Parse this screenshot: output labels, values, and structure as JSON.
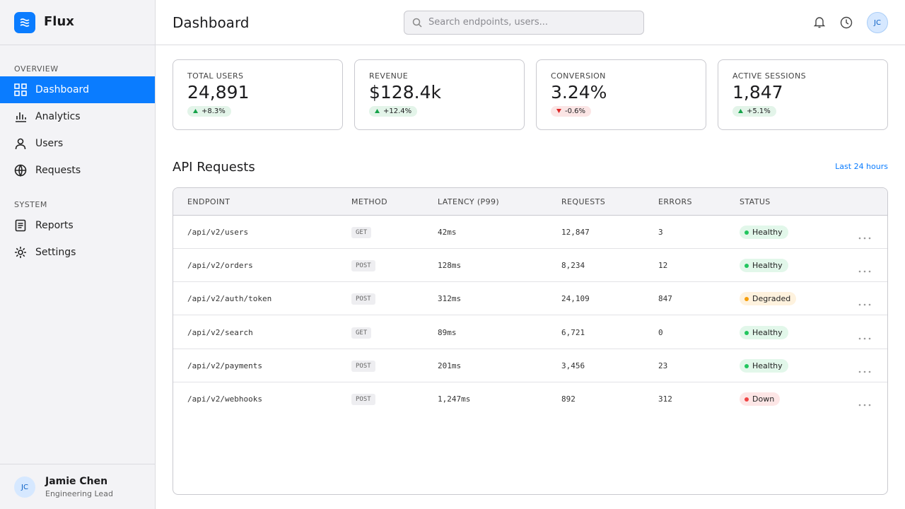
{
  "brand": "Flux",
  "sidebar": {
    "sections": [
      {
        "title": "OVERVIEW",
        "items": [
          "Dashboard",
          "Analytics",
          "Users",
          "Requests"
        ]
      },
      {
        "title": "SYSTEM",
        "items": [
          "Reports",
          "Settings"
        ]
      }
    ],
    "user": {
      "initials": "JC",
      "name": "Jamie Chen",
      "role": "Engineering Lead"
    }
  },
  "header": {
    "title": "Dashboard",
    "search_placeholder": "Search endpoints, users...",
    "avatar": "JC"
  },
  "stats": [
    {
      "label": "TOTAL USERS",
      "value": "24,891",
      "delta": "+8.3%",
      "delta_color": "#16a34a"
    },
    {
      "label": "REVENUE",
      "value": "$128.4k",
      "delta": "+12.4%",
      "delta_color": "#16a34a"
    },
    {
      "label": "CONVERSION",
      "value": "3.24%",
      "delta": "-0.6%",
      "delta_color": "#dc2626"
    },
    {
      "label": "ACTIVE SESSIONS",
      "value": "1,847",
      "delta": "+5.1%",
      "delta_color": "#16a34a"
    }
  ],
  "section": {
    "title": "API Requests",
    "range": "Last 24 hours"
  },
  "table": {
    "columns": [
      "ENDPOINT",
      "METHOD",
      "LATENCY (P99)",
      "REQUESTS",
      "ERRORS",
      "STATUS"
    ],
    "rows": [
      {
        "endpoint": "/api/v2/users",
        "method": "GET",
        "latency": "42ms",
        "requests": "12,847",
        "errors": "3",
        "status": "Healthy",
        "status_color": "#22c55e"
      },
      {
        "endpoint": "/api/v2/orders",
        "method": "POST",
        "latency": "128ms",
        "requests": "8,234",
        "errors": "12",
        "status": "Healthy",
        "status_color": "#22c55e"
      },
      {
        "endpoint": "/api/v2/auth/token",
        "method": "POST",
        "latency": "312ms",
        "requests": "24,109",
        "errors": "847",
        "status": "Degraded",
        "status_color": "#f59e0b"
      },
      {
        "endpoint": "/api/v2/search",
        "method": "GET",
        "latency": "89ms",
        "requests": "6,721",
        "errors": "0",
        "status": "Healthy",
        "status_color": "#22c55e"
      },
      {
        "endpoint": "/api/v2/payments",
        "method": "POST",
        "latency": "201ms",
        "requests": "3,456",
        "errors": "23",
        "status": "Healthy",
        "status_color": "#22c55e"
      },
      {
        "endpoint": "/api/v2/webhooks",
        "method": "POST",
        "latency": "1,247ms",
        "requests": "892",
        "errors": "312",
        "status": "Down",
        "status_color": "#ef4444"
      }
    ]
  }
}
